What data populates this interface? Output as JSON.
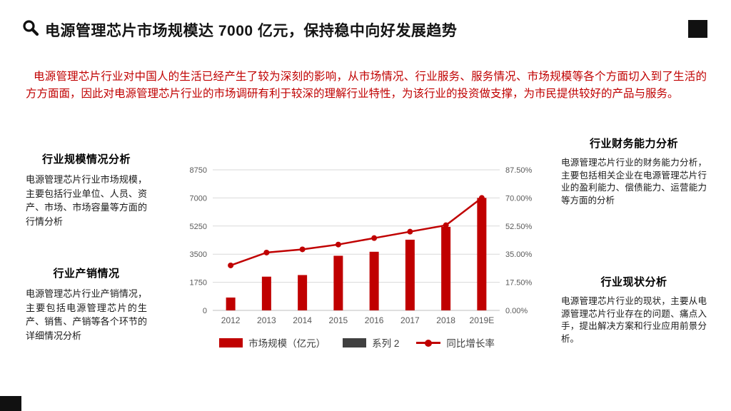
{
  "page": {
    "title": "电源管理芯片市场规模达 7000 亿元，保持稳中向好发展趋势",
    "intro": "电源管理芯片行业对中国人的生活已经产生了较为深刻的影响，从市场情况、行业服务、服务情况、市场规模等各个方面切入到了生活的方方面面，因此对电源管理芯片行业的市场调研有利于较深的理解行业特性，为该行业的投资做支撑，为市民提供较好的产品与服务。"
  },
  "sections": {
    "left_top": {
      "title": "行业规模情况分析",
      "body": "电源管理芯片行业市场规模，主要包括行业单位、人员、资产、市场、市场容量等方面的行情分析"
    },
    "left_bottom": {
      "title": "行业产销情况",
      "body": "电源管理芯片行业产销情况，主要包括电源管理芯片的生产、销售、产销等各个环节的详细情况分析"
    },
    "right_top": {
      "title": "行业财务能力分析",
      "body": "电源管理芯片行业的财务能力分析，主要包括相关企业在电源管理芯片行业的盈利能力、偿债能力、运营能力等方面的分析"
    },
    "right_bottom": {
      "title": "行业现状分析",
      "body": "电源管理芯片行业的现状，主要从电源管理芯片行业存在的问题、痛点入手，提出解决方案和行业应用前景分析。"
    }
  },
  "chart_data": {
    "type": "bar",
    "subtype": "bar-line-combo",
    "categories": [
      "2012",
      "2013",
      "2014",
      "2015",
      "2016",
      "2017",
      "2018",
      "2019E"
    ],
    "series": [
      {
        "name": "市场规模（亿元）",
        "type": "bar",
        "axis": "left",
        "color": "#c00000",
        "values": [
          800,
          2100,
          2200,
          3400,
          3650,
          4400,
          5200,
          7000
        ]
      },
      {
        "name": "系列 2",
        "type": "bar",
        "axis": "left",
        "color": "#404040",
        "values": []
      },
      {
        "name": "同比增长率",
        "type": "line",
        "axis": "right",
        "color": "#c00000",
        "values": [
          28,
          36,
          38,
          41,
          45,
          49,
          53,
          70
        ]
      }
    ],
    "left_axis": {
      "ticks": [
        "0",
        "1750",
        "3500",
        "5250",
        "7000",
        "8750"
      ],
      "min": 0,
      "max": 8750
    },
    "right_axis": {
      "ticks": [
        "0.00%",
        "17.50%",
        "35.00%",
        "52.50%",
        "70.00%",
        "87.50%"
      ],
      "min": 0,
      "max": 87.5
    },
    "grid": true,
    "legend_position": "bottom"
  },
  "colors": {
    "accent": "#c00000",
    "title_text": "#141414",
    "body_text": "#1a1a1a",
    "axis_text": "#595959",
    "gridline": "#d9d9d9"
  }
}
